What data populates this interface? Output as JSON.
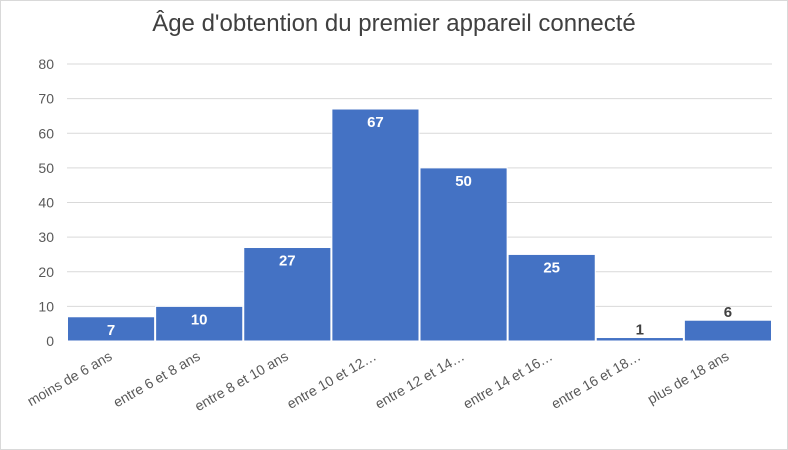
{
  "chart_data": {
    "type": "bar",
    "title": "Âge d'obtention du premier appareil connecté",
    "categories": [
      "moins de 6 ans",
      "entre 6 et 8 ans",
      "entre 8 et 10 ans",
      "entre 10 et 12…",
      "entre 12 et 14…",
      "entre 14 et 16…",
      "entre 16 et 18…",
      "plus de 18 ans"
    ],
    "values": [
      7,
      10,
      27,
      67,
      50,
      25,
      1,
      6
    ],
    "ylim": [
      0,
      80
    ],
    "yticks": [
      0,
      10,
      20,
      30,
      40,
      50,
      60,
      70,
      80
    ],
    "xlabel": "",
    "ylabel": "",
    "grid": true,
    "legend": "none",
    "bar_color": "#4472c4",
    "label_color_inside": "#ffffff",
    "label_color_outside": "#404040"
  }
}
